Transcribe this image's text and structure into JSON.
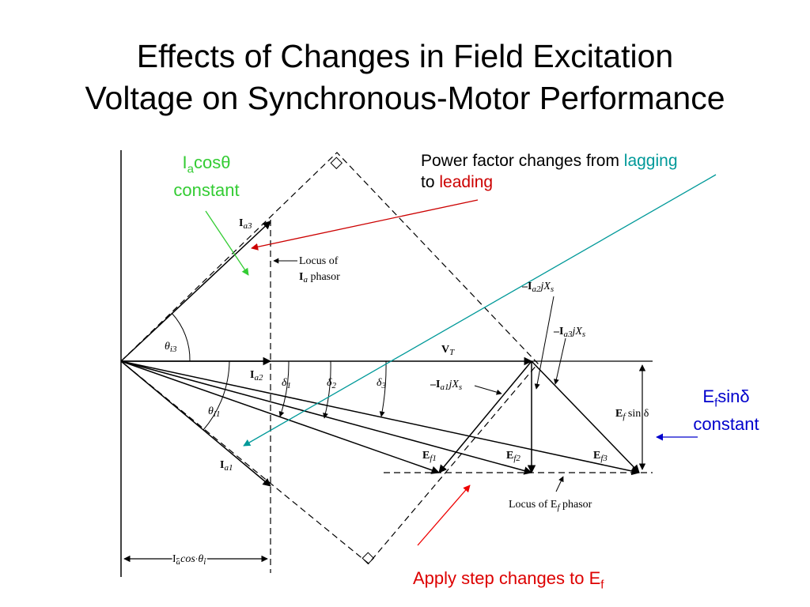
{
  "title": {
    "line1": "Effects of Changes in Field Excitation",
    "line2": "Voltage on Synchronous-Motor Performance"
  },
  "annotations": {
    "ia_cos": {
      "prefix": "I",
      "sub": "a",
      "suffix": "cosθ",
      "line2": "constant",
      "color": "#33cc33"
    },
    "power_factor": {
      "text1": "Power factor changes from ",
      "lagging": "lagging",
      "text2": "to ",
      "leading": "leading",
      "color_lagging": "#009999",
      "color_leading": "#cc0000"
    },
    "ef_sin": {
      "prefix": "E",
      "sub": "f",
      "suffix": "sinδ",
      "line2": "constant",
      "color": "#0000cc"
    },
    "apply_step": {
      "text": "Apply step changes to E",
      "sub": "f",
      "color": "#dd0000"
    }
  },
  "diagram": {
    "ia3": {
      "main": "I",
      "sub": "a3"
    },
    "ia2": {
      "main": "I",
      "sub": "a2"
    },
    "ia1": {
      "main": "I",
      "sub": "a1"
    },
    "locus_ia": {
      "line1": "Locus of",
      "line2_main": "I",
      "line2_sub": "a",
      "line2_rest": " phasor"
    },
    "theta_i3": {
      "main": "θ",
      "sub": "i3"
    },
    "theta_i1": {
      "main": "θ",
      "sub": "i1"
    },
    "vt": {
      "main": "V",
      "sub": "T"
    },
    "delta1": {
      "main": "δ",
      "sub": "1"
    },
    "delta2": {
      "main": "δ",
      "sub": "2"
    },
    "delta3": {
      "main": "δ",
      "sub": "3"
    },
    "ia2jxs": {
      "pre": "–I",
      "sub": "a2",
      "mid": "jX",
      "sub2": "s"
    },
    "ia3jxs": {
      "pre": "–I",
      "sub": "a3",
      "mid": "jX",
      "sub2": "s"
    },
    "ia1jxs": {
      "pre": "–I",
      "sub": "a1",
      "mid": "jX",
      "sub2": "s"
    },
    "ef_sin_delta": {
      "main": "E",
      "sub": "f",
      "rest": " sin δ"
    },
    "ef1": {
      "main": "E",
      "sub": "f1"
    },
    "ef2": {
      "main": "E",
      "sub": "f2"
    },
    "ef3": {
      "main": "E",
      "sub": "f3"
    },
    "locus_ef": {
      "pre": "Locus of E",
      "sub": "f",
      "rest": " phasor"
    },
    "ia_cos_theta": {
      "main": "I",
      "sub": "a",
      "rest": "cos θ",
      "sub2": "i"
    }
  }
}
